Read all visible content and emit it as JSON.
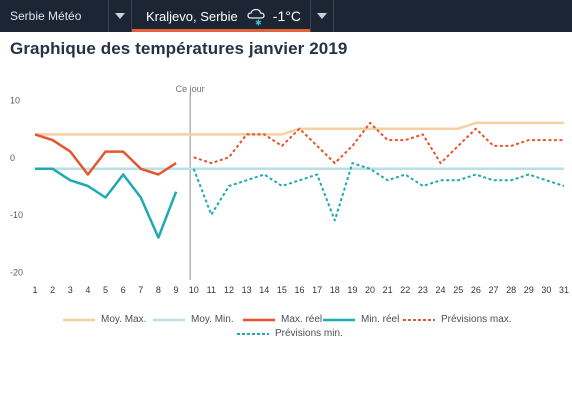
{
  "header": {
    "site_label": "Serbie Météo",
    "city_label": "Kraljevo, Serbie",
    "temperature": "-1°C",
    "weather_icon": "cloud-snow-icon"
  },
  "page_title": "Graphique des températures janvier 2019",
  "chart_data": {
    "type": "line",
    "title": "Graphique des températures janvier 2019",
    "xlabel": "",
    "ylabel": "",
    "x": [
      1,
      2,
      3,
      4,
      5,
      6,
      7,
      8,
      9,
      10,
      11,
      12,
      13,
      14,
      15,
      16,
      17,
      18,
      19,
      20,
      21,
      22,
      23,
      24,
      25,
      26,
      27,
      28,
      29,
      30,
      31
    ],
    "x_tick_labels": [
      "1",
      "2",
      "3",
      "4",
      "5",
      "6",
      "7",
      "8",
      "9",
      "10",
      "11",
      "12",
      "13",
      "14",
      "15",
      "16",
      "17",
      "18",
      "19",
      "20",
      "21",
      "22",
      "23",
      "24",
      "25",
      "26",
      "27",
      "28",
      "29",
      "30",
      "31"
    ],
    "ylim": [
      -20,
      10
    ],
    "y_ticks": [
      10,
      0,
      -10,
      -20
    ],
    "grid": false,
    "legend_position": "bottom",
    "today_marker": {
      "x": 9.8,
      "label": "Ce jour"
    },
    "series": [
      {
        "name": "Moy. Max.",
        "style": "solid",
        "color": "#f8cfa3",
        "points": [
          [
            1,
            4
          ],
          [
            15,
            4
          ],
          [
            16,
            5
          ],
          [
            25,
            5
          ],
          [
            26,
            6
          ],
          [
            31,
            6
          ]
        ]
      },
      {
        "name": "Moy. Min.",
        "style": "solid",
        "color": "#b9e0e6",
        "points": [
          [
            1,
            -2
          ],
          [
            31,
            -2
          ]
        ]
      },
      {
        "name": "Max. réel",
        "style": "solid",
        "color": "#e3562e",
        "points": [
          [
            1,
            4
          ],
          [
            2,
            3
          ],
          [
            3,
            1
          ],
          [
            4,
            -3
          ],
          [
            5,
            1
          ],
          [
            6,
            1
          ],
          [
            7,
            -2
          ],
          [
            8,
            -3
          ],
          [
            9,
            -1
          ]
        ]
      },
      {
        "name": "Min. réel",
        "style": "solid",
        "color": "#1daab2",
        "points": [
          [
            1,
            -2
          ],
          [
            2,
            -2
          ],
          [
            3,
            -4
          ],
          [
            4,
            -5
          ],
          [
            5,
            -7
          ],
          [
            6,
            -3
          ],
          [
            7,
            -7
          ],
          [
            8,
            -14
          ],
          [
            9,
            -6
          ]
        ]
      },
      {
        "name": "Prévisions max.",
        "style": "dashed",
        "color": "#e3562e",
        "points": [
          [
            10,
            0
          ],
          [
            11,
            -1
          ],
          [
            12,
            0
          ],
          [
            13,
            4
          ],
          [
            14,
            4
          ],
          [
            15,
            2
          ],
          [
            16,
            5
          ],
          [
            17,
            2
          ],
          [
            18,
            -1
          ],
          [
            19,
            2
          ],
          [
            20,
            6
          ],
          [
            21,
            3
          ],
          [
            22,
            3
          ],
          [
            23,
            4
          ],
          [
            24,
            -1
          ],
          [
            25,
            2
          ],
          [
            26,
            5
          ],
          [
            27,
            2
          ],
          [
            28,
            2
          ],
          [
            29,
            3
          ],
          [
            30,
            3
          ],
          [
            31,
            3
          ]
        ]
      },
      {
        "name": "Prévisions min.",
        "style": "dashed",
        "color": "#1daab2",
        "points": [
          [
            10,
            -2
          ],
          [
            11,
            -10
          ],
          [
            12,
            -5
          ],
          [
            13,
            -4
          ],
          [
            14,
            -3
          ],
          [
            15,
            -5
          ],
          [
            16,
            -4
          ],
          [
            17,
            -3
          ],
          [
            18,
            -11
          ],
          [
            19,
            -1
          ],
          [
            20,
            -2
          ],
          [
            21,
            -4
          ],
          [
            22,
            -3
          ],
          [
            23,
            -5
          ],
          [
            24,
            -4
          ],
          [
            25,
            -4
          ],
          [
            26,
            -3
          ],
          [
            27,
            -4
          ],
          [
            28,
            -4
          ],
          [
            29,
            -3
          ],
          [
            30,
            -4
          ],
          [
            31,
            -5
          ]
        ]
      }
    ]
  },
  "legend": {
    "moy_max": "Moy. Max.",
    "moy_min": "Moy. Min.",
    "max_reel": "Max. réel",
    "min_reel": "Min. réel",
    "prev_max": "Prévisions max.",
    "prev_min": "Prévisions min."
  },
  "colors": {
    "header_bg": "#1b2533",
    "accent": "#e0613a",
    "title": "#243447"
  }
}
